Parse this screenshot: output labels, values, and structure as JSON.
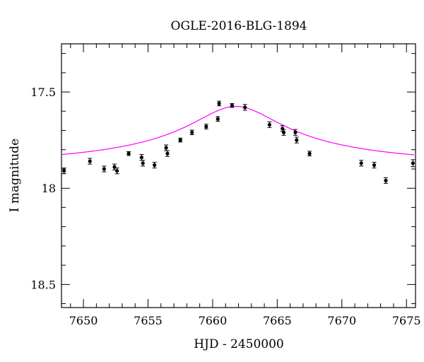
{
  "chart_data": {
    "type": "scatter",
    "title": "OGLE-2016-BLG-1894",
    "xlabel": "HJD - 2450000",
    "ylabel": "I magnitude",
    "xlim": [
      7648.3,
      7675.7
    ],
    "ylim": [
      18.62,
      17.25
    ],
    "y_inverted": true,
    "xticks": [
      7650,
      7655,
      7660,
      7665,
      7670,
      7675
    ],
    "yticks": [
      17.5,
      18,
      18.5
    ],
    "grid": false,
    "colors": {
      "points": "#000000",
      "model": "#ff00ff"
    },
    "series": [
      {
        "kind": "points",
        "x": [
          7648.5,
          7650.5,
          7651.6,
          7652.4,
          7652.6,
          7653.5,
          7654.5,
          7654.6,
          7655.5,
          7656.4,
          7656.5,
          7657.5,
          7658.4,
          7659.5,
          7660.4,
          7660.5,
          7661.5,
          7662.5,
          7664.4,
          7665.4,
          7665.5,
          7666.4,
          7666.5,
          7667.5,
          7671.5,
          7672.5,
          7673.4,
          7675.5
        ],
        "y": [
          17.91,
          17.86,
          17.9,
          17.89,
          17.91,
          17.82,
          17.84,
          17.87,
          17.88,
          17.79,
          17.82,
          17.75,
          17.71,
          17.68,
          17.64,
          17.56,
          17.57,
          17.58,
          17.67,
          17.69,
          17.71,
          17.71,
          17.75,
          17.82,
          17.87,
          17.88,
          17.96,
          17.87
        ],
        "err": [
          0.015,
          0.015,
          0.015,
          0.015,
          0.015,
          0.01,
          0.015,
          0.015,
          0.015,
          0.015,
          0.015,
          0.01,
          0.012,
          0.012,
          0.012,
          0.012,
          0.01,
          0.015,
          0.015,
          0.015,
          0.015,
          0.015,
          0.015,
          0.012,
          0.015,
          0.015,
          0.015,
          0.018
        ]
      },
      {
        "kind": "model",
        "t0": 7661.8,
        "tE": 3.7,
        "baseline": 17.915,
        "peak": 17.575
      }
    ]
  }
}
